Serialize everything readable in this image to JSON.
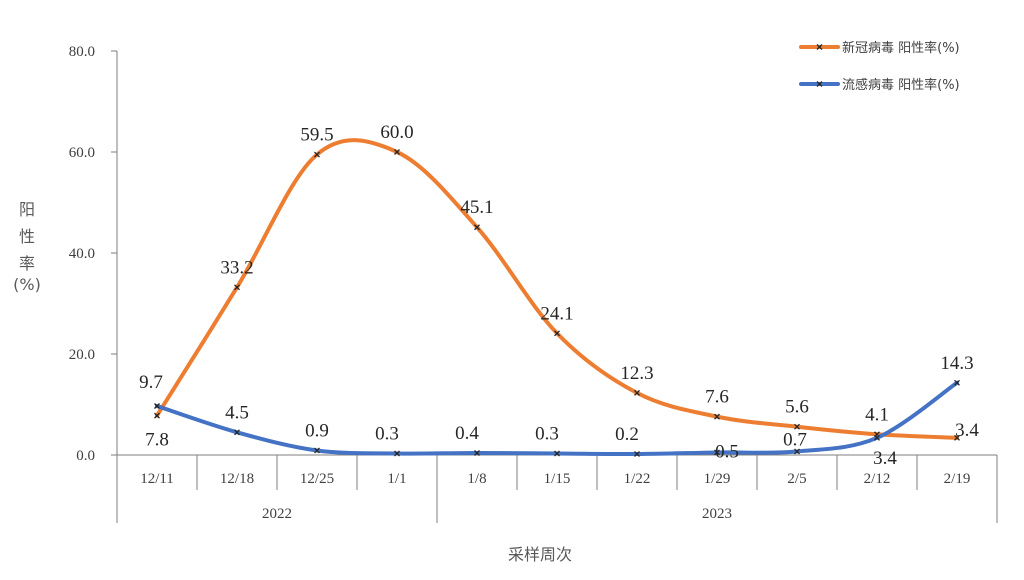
{
  "chart_data": {
    "type": "line",
    "categories": [
      "12/11",
      "12/18",
      "12/25",
      "1/1",
      "1/8",
      "1/15",
      "1/22",
      "1/29",
      "2/5",
      "2/12",
      "2/19"
    ],
    "groups": [
      {
        "label": "2022",
        "span": [
          0,
          3
        ]
      },
      {
        "label": "2023",
        "span": [
          4,
          10
        ]
      }
    ],
    "series": [
      {
        "name": "新冠病毒 阳性率(%)",
        "color": "#ED7D31",
        "values": [
          7.8,
          33.2,
          59.5,
          60.0,
          45.1,
          24.1,
          12.3,
          7.6,
          5.6,
          4.1,
          3.4
        ],
        "labels": [
          "7.8",
          "33.2",
          "59.5",
          "60.0",
          "45.1",
          "24.1",
          "12.3",
          "7.6",
          "5.6",
          "4.1",
          "3.4"
        ]
      },
      {
        "name": "流感病毒 阳性率(%)",
        "color": "#4472C4",
        "values": [
          9.7,
          4.5,
          0.9,
          0.3,
          0.4,
          0.3,
          0.2,
          0.5,
          0.7,
          3.4,
          14.3
        ],
        "labels": [
          "9.7",
          "4.5",
          "0.9",
          "0.3",
          "0.4",
          "0.3",
          "0.2",
          "0.5",
          "0.7",
          "3.4",
          "14.3"
        ]
      }
    ],
    "ylim": [
      0,
      80
    ],
    "yticks": [
      "0.0",
      "20.0",
      "40.0",
      "60.0",
      "80.0"
    ],
    "ylabel": "阳性率(%)",
    "ylabel_chars": [
      "阳",
      "性",
      "率",
      "(%)"
    ],
    "xlabel": "采样周次",
    "smooth": true,
    "marker": "x",
    "grid": false,
    "legend_position": "top-right"
  }
}
